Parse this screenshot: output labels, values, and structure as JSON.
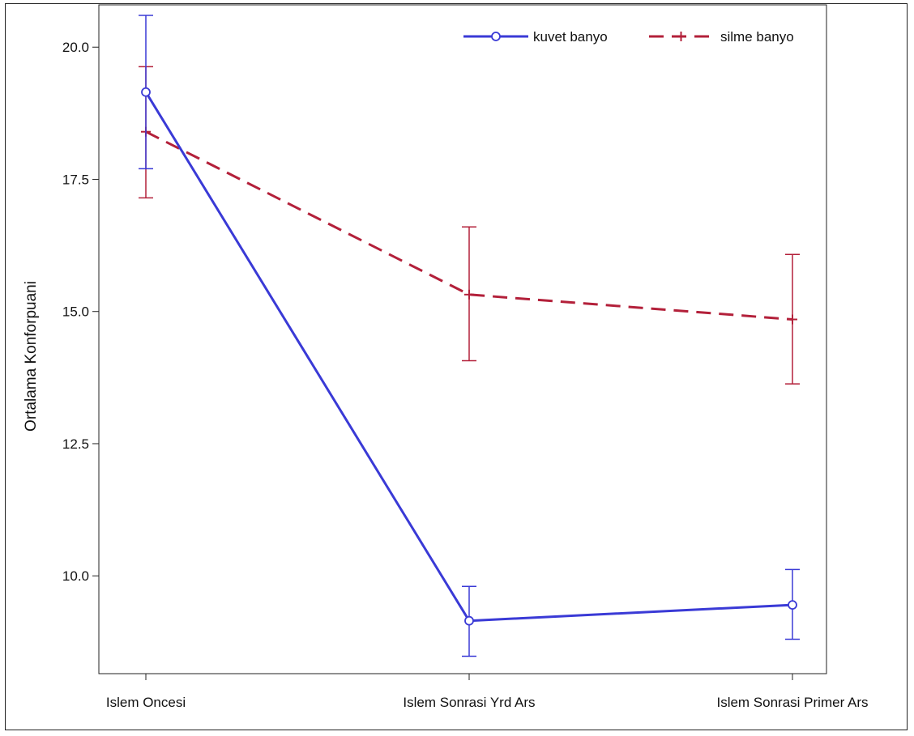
{
  "chart_data": {
    "type": "line",
    "title": "",
    "xlabel": "",
    "ylabel": "Ortalama Konforpuani",
    "categories": [
      "Islem Oncesi",
      "Islem Sonrasi Yrd Ars",
      "Islem Sonrasi Primer Ars"
    ],
    "ylim": [
      8.15,
      20.8
    ],
    "yticks": [
      10.0,
      12.5,
      15.0,
      17.5,
      20.0
    ],
    "ytick_labels": [
      "10.0",
      "12.5",
      "15.0",
      "17.5",
      "20.0"
    ],
    "legend_position": "top-right",
    "grid": false,
    "series": [
      {
        "name": "kuvet banyo",
        "color": "#3a3ad6",
        "line_style": "solid",
        "marker": "circle",
        "values": [
          19.15,
          9.15,
          9.45
        ],
        "err_low": [
          17.7,
          8.48,
          8.8
        ],
        "err_high": [
          20.6,
          9.8,
          10.12
        ]
      },
      {
        "name": "silme banyo",
        "color": "#b3203a",
        "line_style": "dashed",
        "marker": "plus",
        "values": [
          18.4,
          15.32,
          14.85
        ],
        "err_low": [
          17.15,
          14.07,
          13.63
        ],
        "err_high": [
          19.63,
          16.6,
          16.08
        ]
      }
    ]
  }
}
